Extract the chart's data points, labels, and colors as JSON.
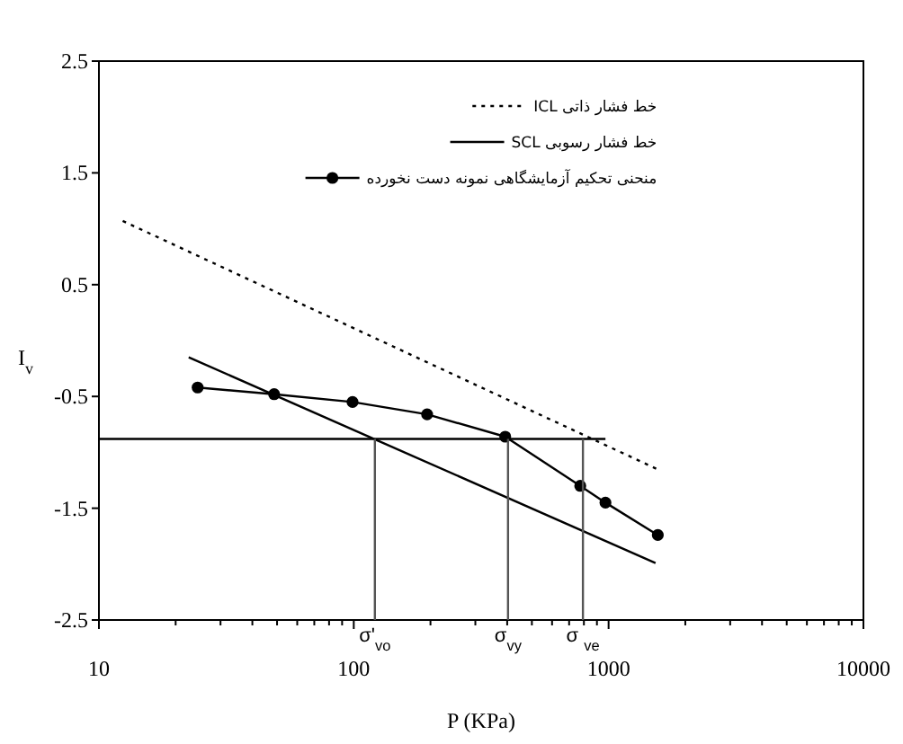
{
  "chart_data": {
    "type": "line",
    "xlabel": "P (KPa)",
    "ylabel": "I$_{v}$",
    "log": "x",
    "xlim": [
      10,
      10000
    ],
    "ylim": [
      -2.5,
      2.5
    ],
    "xticks": [
      10,
      100,
      1000,
      10000
    ],
    "yticks": [
      2.5,
      1.5,
      0.5,
      -0.5,
      -1.5,
      -2.5
    ],
    "legend": "top",
    "grid": false,
    "series": [
      {
        "name": "خط فشار ذاتی  ICL",
        "color": "#000000",
        "line_style": "dotted",
        "marker": "none",
        "x": [
          12.4,
          1585
        ],
        "values": [
          1.07,
          -1.16
        ]
      },
      {
        "name": "خط فشار رسوبی  SCL",
        "color": "#000000",
        "line_style": "solid",
        "marker": "none",
        "x": [
          22.5,
          1528
        ],
        "values": [
          -0.15,
          -1.99
        ]
      },
      {
        "name": "منحنی تحکیم آزمایشگاهی نمونه دست نخورده",
        "color": "#000000",
        "line_style": "solid",
        "marker": "circle",
        "x": [
          24.4,
          48.7,
          98.9,
          194,
          393,
          774,
          972,
          1560
        ],
        "values": [
          -0.42,
          -0.48,
          -0.55,
          -0.66,
          -0.86,
          -1.3,
          -1.45,
          -1.74
        ]
      },
      {
        "color": "#000000",
        "line_style": "solid",
        "marker": "none",
        "x": [
          10,
          972
        ],
        "values": [
          -0.88,
          -0.88
        ]
      },
      {
        "color": "#555555",
        "line_style": "solid",
        "marker": "none",
        "x": [
          121,
          121
        ],
        "values": [
          -0.88,
          -2.5
        ]
      },
      {
        "color": "#555555",
        "line_style": "solid",
        "marker": "none",
        "x": [
          403,
          403
        ],
        "values": [
          -0.88,
          -2.5
        ]
      },
      {
        "color": "#555555",
        "line_style": "solid",
        "marker": "none",
        "x": [
          793,
          793
        ],
        "values": [
          -0.88,
          -2.5
        ]
      }
    ],
    "annotations": [
      {
        "text": "σ'$_{vo}$",
        "x": 121,
        "y": -2.5
      },
      {
        "text": "σ$_{vy}$",
        "x": 403,
        "y": -2.5
      },
      {
        "text": "σ $_{ve}$",
        "x": 793,
        "y": -2.5
      }
    ]
  }
}
